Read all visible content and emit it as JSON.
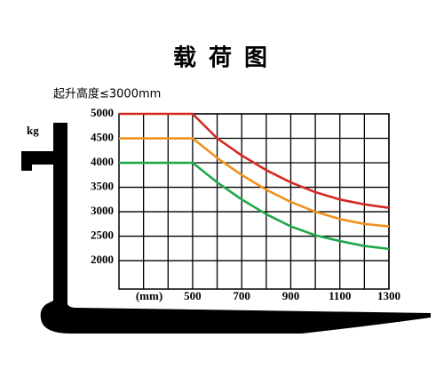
{
  "chart_data": {
    "type": "line",
    "title": "载荷图",
    "subtitle": "起升高度≤3000mm",
    "y_label": "kg",
    "x_label": "(mm)",
    "x": [
      200,
      300,
      400,
      500,
      600,
      700,
      800,
      900,
      1000,
      1100,
      1200,
      1300
    ],
    "series": [
      {
        "name": "5000",
        "color": "#d42a22",
        "values": [
          5000,
          5000,
          5000,
          5000,
          4500,
          4150,
          3850,
          3600,
          3400,
          3250,
          3150,
          3080
        ]
      },
      {
        "name": "4500",
        "color": "#f0921e",
        "values": [
          4500,
          4500,
          4500,
          4500,
          4100,
          3750,
          3450,
          3200,
          3000,
          2850,
          2750,
          2700
        ]
      },
      {
        "name": "4000",
        "color": "#1fa84a",
        "values": [
          4000,
          4000,
          4000,
          4000,
          3600,
          3250,
          2950,
          2700,
          2520,
          2400,
          2300,
          2240
        ]
      }
    ],
    "xlim": [
      200,
      1300
    ],
    "xticks": [
      500,
      700,
      900,
      1100,
      1300
    ],
    "ylim": [
      1420,
      5000
    ],
    "yticks": [
      2000,
      2500,
      3000,
      3500,
      4000,
      4500,
      5000
    ],
    "grid": true
  }
}
